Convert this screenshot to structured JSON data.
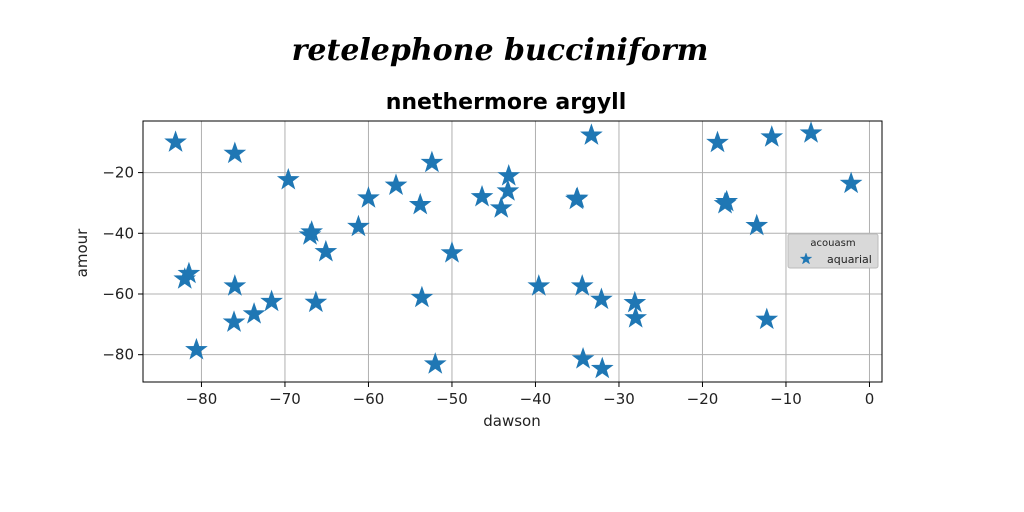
{
  "chart_data": {
    "type": "scatter",
    "suptitle": "retelephone bucciniform",
    "title": "nnethermore argyll",
    "xlabel": "dawson",
    "ylabel": "amour",
    "xlim": [
      -87,
      1.5
    ],
    "ylim": [
      -89,
      -3
    ],
    "xticks": [
      -80,
      -70,
      -60,
      -50,
      -40,
      -30,
      -20,
      -10,
      0
    ],
    "xtick_labels": [
      "−80",
      "−70",
      "−60",
      "−50",
      "−40",
      "−30",
      "−20",
      "−10",
      "0"
    ],
    "yticks": [
      -80,
      -60,
      -40,
      -20
    ],
    "ytick_labels": [
      "−80",
      "−60",
      "−40",
      "−20"
    ],
    "grid": true,
    "marker": "star",
    "legend": {
      "title": "acouasm",
      "placement": "center-right"
    },
    "series": [
      {
        "name": "aquarial",
        "color": "#1f77b4",
        "points": [
          [
            -83.1,
            -10.0
          ],
          [
            -76.0,
            -13.7
          ],
          [
            -69.6,
            -22.4
          ],
          [
            -67.0,
            -40.6
          ],
          [
            -66.8,
            -39.6
          ],
          [
            -65.1,
            -46.1
          ],
          [
            -61.2,
            -37.8
          ],
          [
            -60.0,
            -28.4
          ],
          [
            -56.7,
            -24.2
          ],
          [
            -53.8,
            -30.6
          ],
          [
            -52.4,
            -16.7
          ],
          [
            -50.0,
            -46.5
          ],
          [
            -46.4,
            -28.0
          ],
          [
            -44.1,
            -31.7
          ],
          [
            -43.3,
            -26.1
          ],
          [
            -43.2,
            -21.1
          ],
          [
            -35.1,
            -28.9
          ],
          [
            -35.0,
            -28.5
          ],
          [
            -33.3,
            -7.7
          ],
          [
            -18.2,
            -10.1
          ],
          [
            -17.3,
            -30.3
          ],
          [
            -17.1,
            -29.6
          ],
          [
            -13.5,
            -37.5
          ],
          [
            -11.7,
            -8.3
          ],
          [
            -7.0,
            -7.0
          ],
          [
            -2.2,
            -23.6
          ],
          [
            -82.0,
            -55.1
          ],
          [
            -81.5,
            -53.3
          ],
          [
            -76.0,
            -57.4
          ],
          [
            -76.1,
            -69.3
          ],
          [
            -73.7,
            -66.6
          ],
          [
            -71.6,
            -62.5
          ],
          [
            -66.3,
            -62.8
          ],
          [
            -80.6,
            -78.4
          ],
          [
            -53.6,
            -61.2
          ],
          [
            -52.0,
            -83.1
          ],
          [
            -39.6,
            -57.4
          ],
          [
            -34.4,
            -57.4
          ],
          [
            -34.3,
            -81.4
          ],
          [
            -32.1,
            -61.8
          ],
          [
            -32.0,
            -84.6
          ],
          [
            -28.1,
            -62.9
          ],
          [
            -28.0,
            -67.9
          ],
          [
            -12.3,
            -68.4
          ]
        ]
      }
    ]
  }
}
